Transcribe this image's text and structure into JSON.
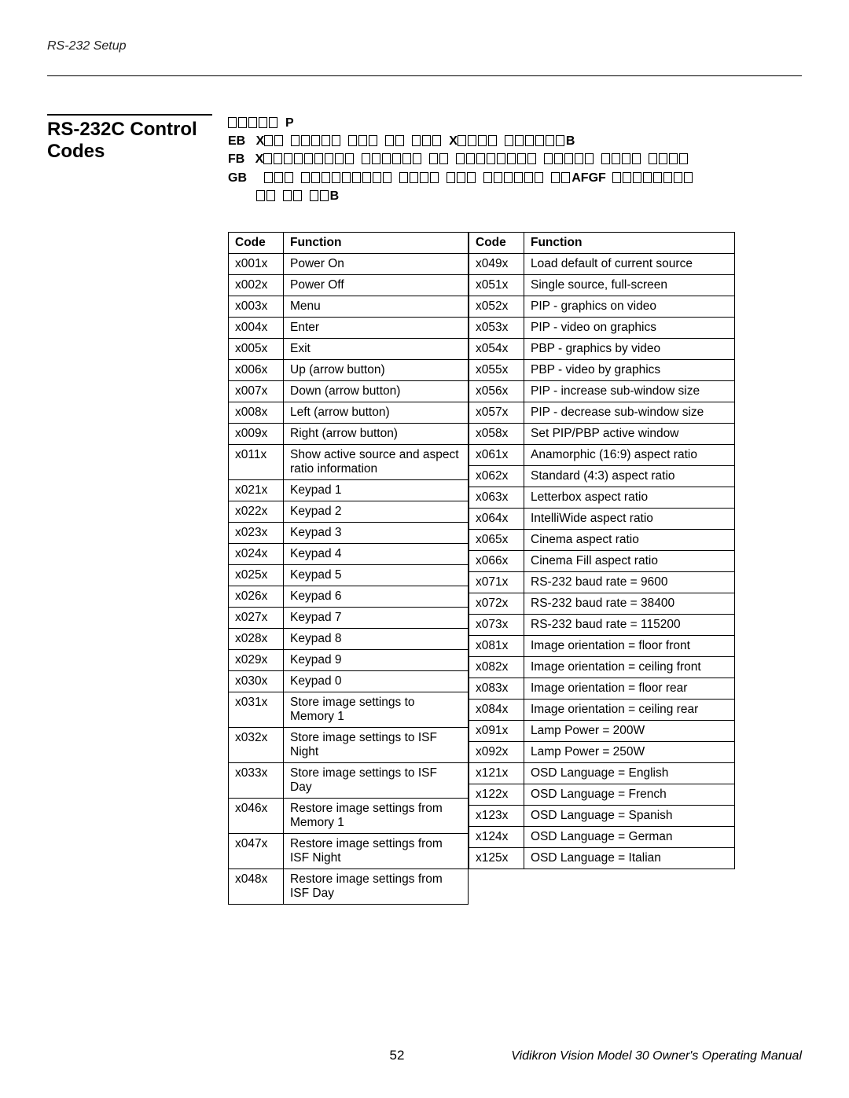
{
  "header": {
    "running": "RS-232 Setup"
  },
  "section": {
    "title_line1": "RS-232C Control",
    "title_line2": "Codes"
  },
  "footer": {
    "page_number": "52",
    "manual_title": "Vidikron Vision Model 30 Owner's Operating Manual"
  },
  "table": {
    "columns": [
      "Code",
      "Function"
    ],
    "left_rows": [
      [
        "x001x",
        "Power On"
      ],
      [
        "x002x",
        "Power Off"
      ],
      [
        "x003x",
        "Menu"
      ],
      [
        "x004x",
        "Enter"
      ],
      [
        "x005x",
        "Exit"
      ],
      [
        "x006x",
        "Up (arrow button)"
      ],
      [
        "x007x",
        "Down (arrow button)"
      ],
      [
        "x008x",
        "Left (arrow button)"
      ],
      [
        "x009x",
        "Right (arrow button)"
      ],
      [
        "x011x",
        "Show active source and aspect ratio information"
      ],
      [
        "x021x",
        "Keypad 1"
      ],
      [
        "x022x",
        "Keypad 2"
      ],
      [
        "x023x",
        "Keypad 3"
      ],
      [
        "x024x",
        "Keypad 4"
      ],
      [
        "x025x",
        "Keypad 5"
      ],
      [
        "x026x",
        "Keypad 6"
      ],
      [
        "x027x",
        "Keypad 7"
      ],
      [
        "x028x",
        "Keypad 8"
      ],
      [
        "x029x",
        "Keypad 9"
      ],
      [
        "x030x",
        "Keypad 0"
      ],
      [
        "x031x",
        "Store image settings to Memory 1"
      ],
      [
        "x032x",
        "Store image settings to ISF Night"
      ],
      [
        "x033x",
        "Store image settings to ISF Day"
      ],
      [
        "x046x",
        "Restore image settings from Memory 1"
      ],
      [
        "x047x",
        "Restore image settings from ISF Night"
      ],
      [
        "x048x",
        "Restore image settings from ISF Day"
      ]
    ],
    "right_rows": [
      [
        "x049x",
        "Load default of current source"
      ],
      [
        "x051x",
        "Single source, full-screen"
      ],
      [
        "x052x",
        "PIP - graphics on video"
      ],
      [
        "x053x",
        "PIP - video on graphics"
      ],
      [
        "x054x",
        "PBP - graphics by video"
      ],
      [
        "x055x",
        "PBP - video by graphics"
      ],
      [
        "x056x",
        "PIP - increase sub-window size"
      ],
      [
        "x057x",
        "PIP - decrease sub-window size"
      ],
      [
        "x058x",
        "Set PIP/PBP active window"
      ],
      [
        "x061x",
        "Anamorphic (16:9) aspect ratio"
      ],
      [
        "x062x",
        "Standard (4:3) aspect ratio"
      ],
      [
        "x063x",
        "Letterbox aspect ratio"
      ],
      [
        "x064x",
        "IntelliWide aspect ratio"
      ],
      [
        "x065x",
        "Cinema aspect ratio"
      ],
      [
        "x066x",
        "Cinema Fill aspect ratio"
      ],
      [
        "x071x",
        "RS-232 baud rate = 9600"
      ],
      [
        "x072x",
        "RS-232 baud rate = 38400"
      ],
      [
        "x073x",
        "RS-232 baud rate = 115200"
      ],
      [
        "x081x",
        "Image orientation = floor front"
      ],
      [
        "x082x",
        "Image orientation = ceiling front"
      ],
      [
        "x083x",
        "Image orientation = floor rear"
      ],
      [
        "x084x",
        "Image orientation = ceiling rear"
      ],
      [
        "x091x",
        "Lamp Power = 200W"
      ],
      [
        "x092x",
        "Lamp Power = 250W"
      ],
      [
        "x121x",
        "OSD Language = English"
      ],
      [
        "x122x",
        "OSD Language = French"
      ],
      [
        "x123x",
        "OSD Language = Spanish"
      ],
      [
        "x124x",
        "OSD Language = German"
      ],
      [
        "x125x",
        "OSD Language = Italian"
      ]
    ]
  },
  "notes": {
    "line0_glyphs": 5,
    "line0_tail": "P",
    "line1_head": "EB",
    "line1_x1": "X",
    "line1_g1": 2,
    "line1_g2": 5,
    "line1_g3": 3,
    "line1_g4": 2,
    "line1_g5": 3,
    "line1_x2": "X",
    "line1_g6": 4,
    "line1_g7": 6,
    "line1_tail": "B",
    "line2_head": "FB",
    "line2_x": "X",
    "line2_g1": 9,
    "line2_g2": 6,
    "line2_g3": 2,
    "line2_g4": 8,
    "line2_g5": 5,
    "line2_g6": 4,
    "line2_g7": 4,
    "line3_head": "GB",
    "line3_g1": 3,
    "line3_g2": 9,
    "line3_g3": 4,
    "line3_g4": 3,
    "line3_g5": 6,
    "line3_g6": 2,
    "line3_mid": "AFGF",
    "line3_g7": 8,
    "line4_g1": 2,
    "line4_g2": 2,
    "line4_g3": 2,
    "line4_tail": "B"
  }
}
